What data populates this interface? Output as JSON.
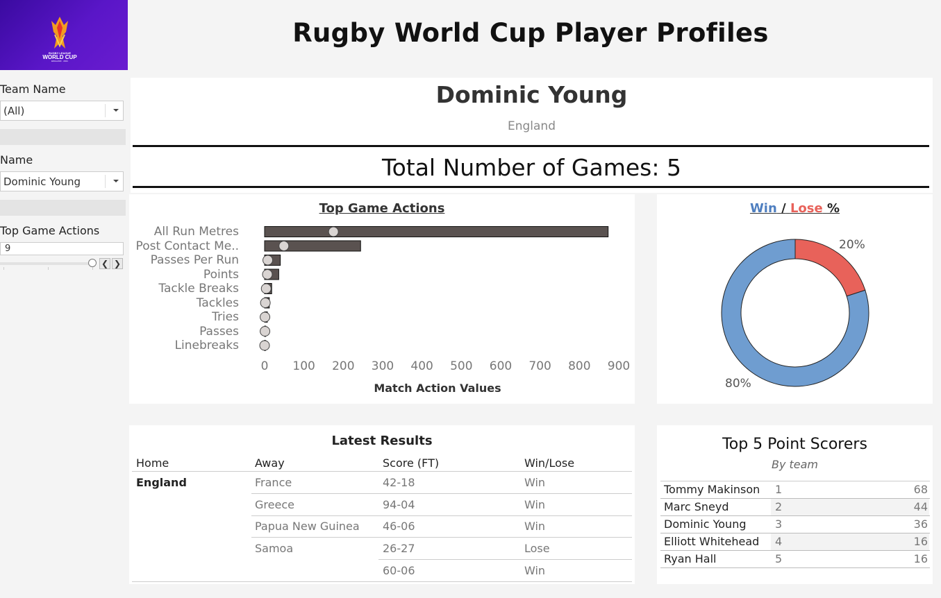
{
  "header": {
    "title": "Rugby World Cup Player Profiles",
    "logo_top": "RUGBY LEAGUE",
    "logo_main": "WORLD CUP",
    "logo_sub": "ENGLAND · 2021"
  },
  "sidebar": {
    "team_label": "Team Name",
    "team_value": "(All)",
    "name_label": "Name",
    "name_value": "Dominic Young",
    "actions_label": "Top Game Actions",
    "actions_value": "9"
  },
  "player": {
    "name": "Dominic Young",
    "team": "England",
    "total_games": "Total Number of Games: 5"
  },
  "actions_chart": {
    "title": "Top Game Actions",
    "xlabel": "Match Action Values",
    "ticks": [
      "0",
      "100",
      "200",
      "300",
      "400",
      "500",
      "600",
      "700",
      "800",
      "900"
    ]
  },
  "chart_data": [
    {
      "type": "bar",
      "title": "Top Game Actions",
      "xlabel": "Match Action Values",
      "ylabel": "",
      "xlim": [
        0,
        900
      ],
      "categories": [
        "All Run Metres",
        "Post Contact Me..",
        "Passes Per Run",
        "Points",
        "Tackle Breaks",
        "Tackles",
        "Tries",
        "Passes",
        "Linebreaks"
      ],
      "series": [
        {
          "values": [
            873,
            244,
            40,
            36,
            18,
            12,
            7,
            3,
            2
          ]
        },
        {
          "values": [
            175,
            49,
            8,
            7,
            4,
            2,
            1,
            1,
            0
          ]
        }
      ],
      "colors": {
        "bar": "#5a5250",
        "marker": "#d9d4d2"
      }
    },
    {
      "type": "pie",
      "title": "Win / Lose %",
      "categories": [
        "Win",
        "Lose"
      ],
      "values": [
        80,
        20
      ],
      "labels": [
        "80%",
        "20%"
      ],
      "colors": [
        "#6f9dd0",
        "#e8625a"
      ]
    }
  ],
  "donut": {
    "win": "Win",
    "sep": "/",
    "lose": "Lose",
    "pct": "%",
    "label_lose": "20%",
    "label_win": "80%"
  },
  "results": {
    "title": "Latest Results",
    "headers": [
      "Home",
      "Away",
      "Score (FT)",
      "Win/Lose"
    ],
    "home": "England",
    "rows": [
      [
        "France",
        "42-18",
        "Win"
      ],
      [
        "Greece",
        "94-04",
        "Win"
      ],
      [
        "Papua New Guinea",
        "46-06",
        "Win"
      ],
      [
        "Samoa",
        "26-27",
        "Lose"
      ],
      [
        "",
        "60-06",
        "Win"
      ]
    ]
  },
  "scorers": {
    "title": "Top 5 Point Scorers",
    "subtitle": "By team",
    "rows": [
      {
        "name": "Tommy Makinson",
        "rank": "1",
        "points": "68"
      },
      {
        "name": "Marc Sneyd",
        "rank": "2",
        "points": "44"
      },
      {
        "name": "Dominic Young",
        "rank": "3",
        "points": "36"
      },
      {
        "name": "Elliott Whitehead",
        "rank": "4",
        "points": "16"
      },
      {
        "name": "Ryan Hall",
        "rank": "5",
        "points": "16"
      }
    ]
  }
}
